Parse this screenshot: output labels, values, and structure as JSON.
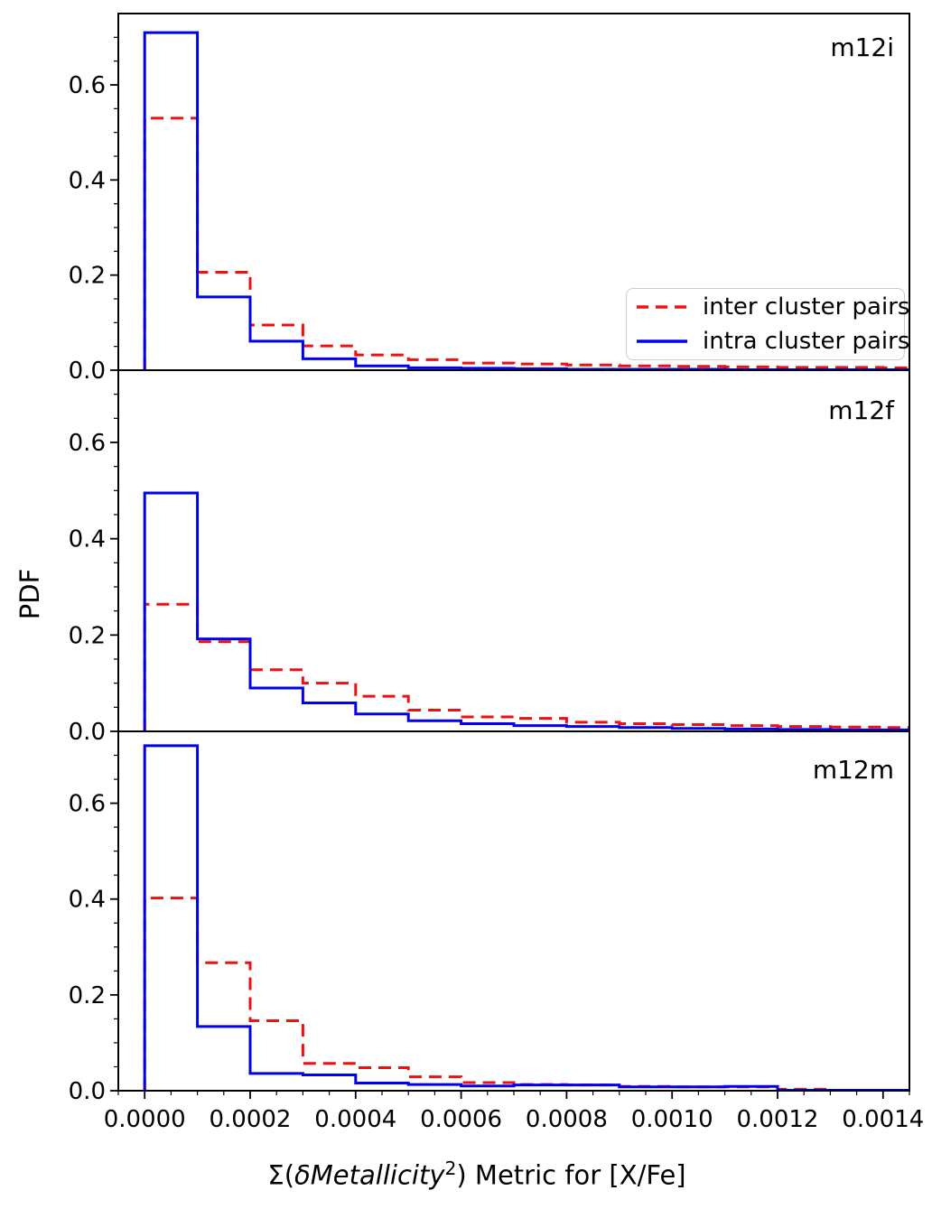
{
  "figure": {
    "background": "#ffffff"
  },
  "axes": {
    "ylabel": "PDF",
    "xlabel": {
      "prefix": "Σ(",
      "italic_term": "δMetallicity",
      "superscript": "2",
      "suffix": ") Metric for [X/Fe]"
    },
    "x_tick_values": [
      0.0,
      0.0002,
      0.0004,
      0.0006,
      0.0008,
      0.001,
      0.0012,
      0.0014
    ],
    "x_tick_labels": [
      "0.0000",
      "0.0002",
      "0.0004",
      "0.0006",
      "0.0008",
      "0.0010",
      "0.0012",
      "0.0014"
    ],
    "y_tick_values": [
      0.0,
      0.2,
      0.4,
      0.6
    ],
    "y_tick_labels": [
      "0.0",
      "0.2",
      "0.4",
      "0.6"
    ],
    "xlim": [
      -5e-05,
      0.00145
    ],
    "ylim": [
      0,
      0.75
    ],
    "x_minor_step": 5e-05,
    "y_minor_step": 0.05,
    "grid": false
  },
  "legend": {
    "position": "upper right of top panel",
    "items": [
      {
        "label": "inter cluster pairs",
        "color": "#ee1111",
        "linestyle": "dashed"
      },
      {
        "label": "intra cluster pairs",
        "color": "#0000ee",
        "linestyle": "solid"
      }
    ]
  },
  "chart_data": [
    {
      "type": "bar",
      "subtype": "step-histogram",
      "label": "m12i",
      "bin_start": 0.0,
      "bin_width": 0.0001,
      "ylim": [
        0,
        0.75
      ],
      "series": [
        {
          "name": "inter cluster pairs",
          "color": "#ee1111",
          "linestyle": "dashed",
          "values": [
            0.53,
            0.206,
            0.095,
            0.051,
            0.032,
            0.022,
            0.015,
            0.013,
            0.011,
            0.009,
            0.008,
            0.007,
            0.006,
            0.006,
            0.005
          ]
        },
        {
          "name": "intra cluster pairs",
          "color": "#0000ee",
          "linestyle": "solid",
          "values": [
            0.71,
            0.154,
            0.061,
            0.024,
            0.009,
            0.005,
            0.004,
            0.003,
            0.002,
            0.002,
            0.002,
            0.001,
            0.001,
            0.001,
            0.001
          ]
        }
      ]
    },
    {
      "type": "bar",
      "subtype": "step-histogram",
      "label": "m12f",
      "bin_start": 0.0,
      "bin_width": 0.0001,
      "ylim": [
        0,
        0.75
      ],
      "series": [
        {
          "name": "inter cluster pairs",
          "color": "#ee1111",
          "linestyle": "dashed",
          "values": [
            0.264,
            0.186,
            0.128,
            0.1,
            0.073,
            0.044,
            0.03,
            0.027,
            0.019,
            0.016,
            0.014,
            0.012,
            0.01,
            0.009,
            0.008
          ]
        },
        {
          "name": "intra cluster pairs",
          "color": "#0000ee",
          "linestyle": "solid",
          "values": [
            0.495,
            0.192,
            0.09,
            0.059,
            0.036,
            0.022,
            0.016,
            0.012,
            0.01,
            0.008,
            0.006,
            0.005,
            0.004,
            0.003,
            0.003
          ]
        }
      ]
    },
    {
      "type": "bar",
      "subtype": "step-histogram",
      "label": "m12m",
      "bin_start": 0.0,
      "bin_width": 0.0001,
      "ylim": [
        0,
        0.75
      ],
      "series": [
        {
          "name": "inter cluster pairs",
          "color": "#ee1111",
          "linestyle": "dashed",
          "values": [
            0.402,
            0.267,
            0.146,
            0.057,
            0.048,
            0.029,
            0.017,
            0.013,
            0.012,
            0.009,
            0.008,
            0.008,
            0.003,
            0.001,
            0.001
          ]
        },
        {
          "name": "intra cluster pairs",
          "color": "#0000ee",
          "linestyle": "solid",
          "values": [
            0.72,
            0.134,
            0.036,
            0.033,
            0.016,
            0.013,
            0.01,
            0.012,
            0.012,
            0.008,
            0.008,
            0.009,
            0.001,
            0.001,
            0.001
          ]
        }
      ]
    }
  ]
}
